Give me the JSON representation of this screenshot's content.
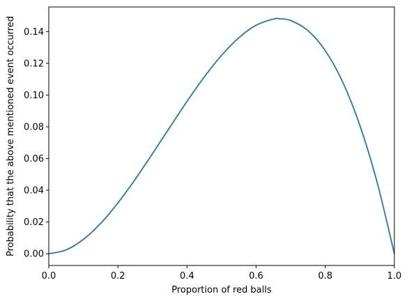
{
  "chart_data": {
    "type": "line",
    "xlabel": "Proportion of red balls",
    "ylabel": "Probability that the above mentioned event occurred",
    "xlim": [
      0.0,
      1.0
    ],
    "ylim": [
      -0.0074,
      0.1555
    ],
    "x_ticks": [
      0.0,
      0.2,
      0.4,
      0.6,
      0.8,
      1.0
    ],
    "x_tick_labels": [
      "0.0",
      "0.2",
      "0.4",
      "0.6",
      "0.8",
      "1.0"
    ],
    "y_ticks": [
      0.0,
      0.02,
      0.04,
      0.06,
      0.08,
      0.1,
      0.12,
      0.14
    ],
    "y_tick_labels": [
      "0.00",
      "0.02",
      "0.04",
      "0.06",
      "0.08",
      "0.10",
      "0.12",
      "0.14"
    ],
    "grid": false,
    "legend": "none",
    "series": [
      {
        "color": "#1f77b4",
        "x": [
          0.0,
          0.05,
          0.1,
          0.15,
          0.2,
          0.25,
          0.3,
          0.35,
          0.4,
          0.45,
          0.5,
          0.55,
          0.6,
          0.65,
          0.6667,
          0.7,
          0.75,
          0.8,
          0.85,
          0.9,
          0.95,
          1.0
        ],
        "y": [
          0.0,
          0.0024,
          0.009,
          0.0191,
          0.032,
          0.0469,
          0.063,
          0.0796,
          0.096,
          0.1114,
          0.125,
          0.1361,
          0.144,
          0.1479,
          0.1481,
          0.147,
          0.1406,
          0.128,
          0.1084,
          0.081,
          0.0451,
          0.0
        ]
      }
    ]
  }
}
